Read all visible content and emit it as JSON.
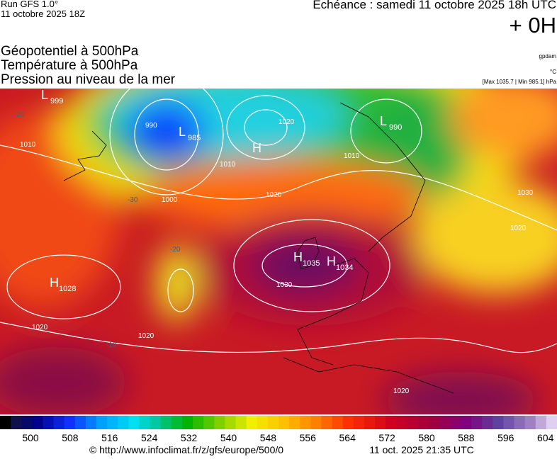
{
  "header": {
    "run": "Run GFS 1.0°",
    "date": "11 octobre 2025 18Z",
    "echeance": "Echéance : samedi 11 octobre 2025 18h UTC",
    "lead": "+ 0H"
  },
  "titles": [
    "Géopotentiel à 500hPa",
    "Température à 500hPa",
    "Pression au niveau de la mer"
  ],
  "units": [
    "gpdam",
    "°C",
    "[Max 1035.7 | Min 985.1] hPa"
  ],
  "map": {
    "centers": [
      {
        "symbol": "L",
        "value": "999"
      },
      {
        "symbol": "L",
        "value": "985"
      },
      {
        "symbol": "H",
        "value": ""
      },
      {
        "symbol": "L",
        "value": "990"
      },
      {
        "symbol": "H",
        "value": "1035"
      },
      {
        "symbol": "H",
        "value": "1034"
      },
      {
        "symbol": "H",
        "value": "1028"
      }
    ],
    "contour_labels": [
      "1010",
      "990",
      "1000",
      "1020",
      "1010",
      "1020",
      "1030",
      "1020",
      "1020",
      "1010",
      "1020",
      "1030",
      "1020",
      "-20",
      "-30",
      "-20",
      "-10"
    ]
  },
  "colorbar": {
    "labels": [
      500,
      508,
      516,
      524,
      532,
      540,
      548,
      556,
      564,
      572,
      580,
      588,
      596,
      604
    ]
  },
  "footer": {
    "url": "© http://www.infoclimat.fr/z/gfs/europe/500/0",
    "time": "11 oct. 2025 21:35 UTC"
  }
}
